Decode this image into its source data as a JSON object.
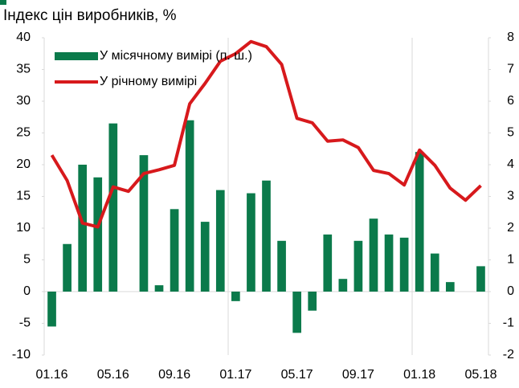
{
  "chart_data": {
    "type": "bar_line",
    "title": "Індекс цін виробників, %",
    "categories": [
      "01.16",
      null,
      null,
      null,
      "05.16",
      null,
      null,
      null,
      "09.16",
      null,
      null,
      null,
      "01.17",
      null,
      null,
      null,
      "05.17",
      null,
      null,
      null,
      "09.17",
      null,
      null,
      null,
      "01.18",
      null,
      null,
      null,
      "05.18"
    ],
    "series": [
      {
        "name": "У місячному вимірі (п. ш.)",
        "color": "#0b7a4b",
        "kind": "bar",
        "axis": "y2",
        "values": [
          -1.1,
          1.5,
          4.0,
          3.6,
          5.3,
          0,
          4.3,
          0.2,
          2.6,
          5.4,
          2.2,
          3.2,
          -0.3,
          3.1,
          3.5,
          1.6,
          -1.3,
          -0.6,
          1.8,
          0.4,
          1.6,
          2.3,
          1.8,
          1.7,
          4.4,
          1.2,
          0.3,
          0,
          0.8
        ]
      },
      {
        "name": "У річному вимірі",
        "color": "#d7191c",
        "kind": "line",
        "values": [
          21.5,
          17.5,
          10.8,
          10.2,
          16.5,
          15.8,
          18.6,
          19.2,
          19.9,
          29.6,
          32.8,
          36.3,
          37.5,
          39.4,
          38.6,
          35.8,
          27.3,
          26.6,
          23.7,
          23.9,
          22.7,
          19.1,
          18.6,
          16.8,
          22.3,
          19.9,
          16.3,
          14.4,
          16.7
        ]
      }
    ],
    "ylim": [
      -10,
      40
    ],
    "yticks": [
      -10,
      -5,
      0,
      5,
      10,
      15,
      20,
      25,
      30,
      35,
      40
    ],
    "y2lim": [
      -2,
      8
    ],
    "y2ticks": [
      -2,
      -1,
      0,
      1,
      2,
      3,
      4,
      5,
      6,
      7,
      8
    ]
  }
}
